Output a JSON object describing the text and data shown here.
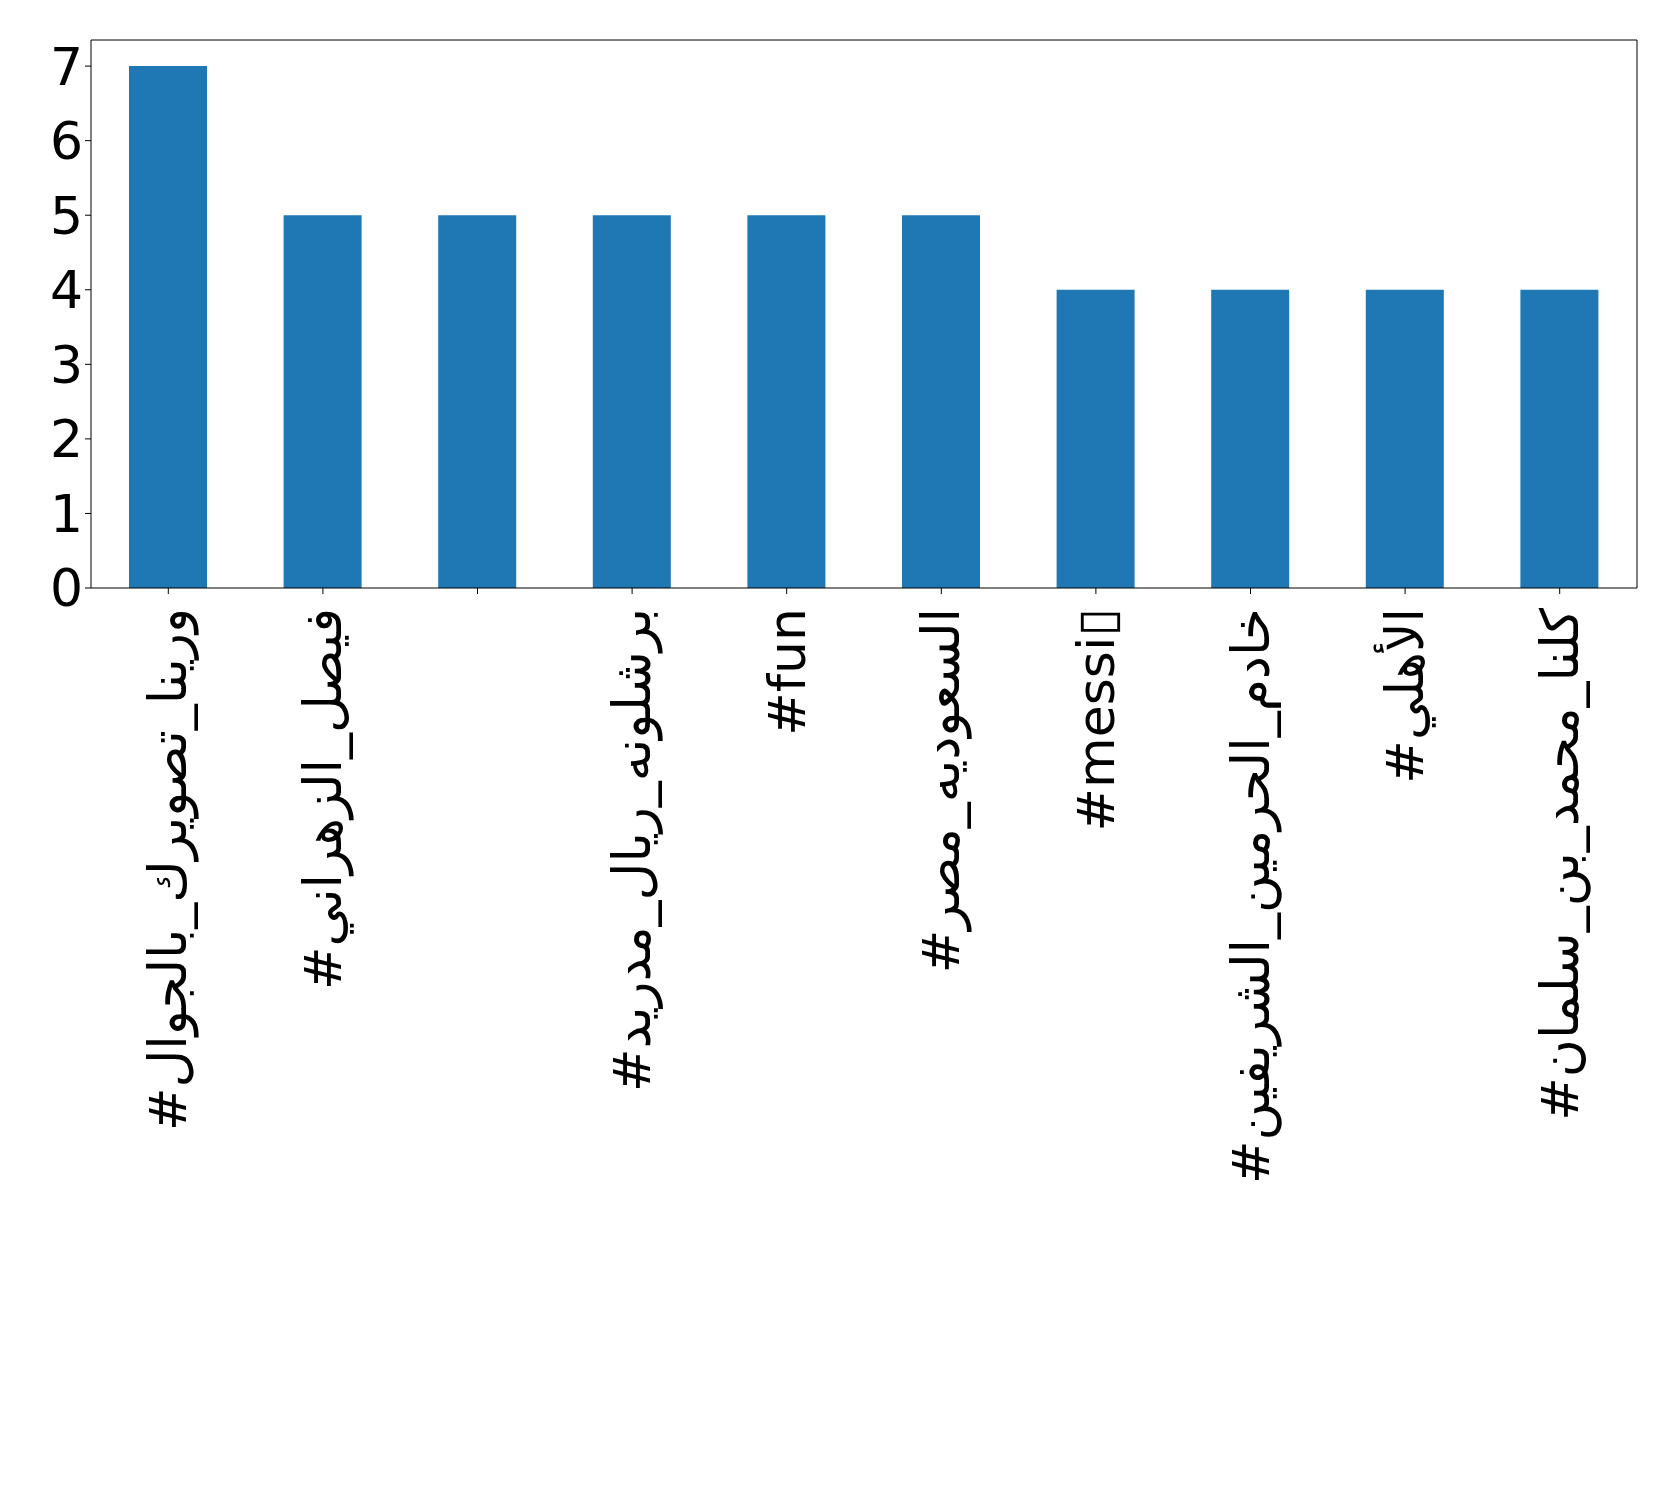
{
  "chart_data": {
    "type": "bar",
    "categories": [
      "#ورينا_تصويرك_بالجوال",
      "#فيصل_الزهراني",
      null,
      "#برشلونه_ريال_مدريد",
      "#fun",
      "#السعوديه_مصر",
      "#messi▯",
      "#خادم_الحرمين_الشريفين",
      "#الأهلي",
      "#كلنا_محمد_بن_سلمان"
    ],
    "values": [
      7,
      5,
      5,
      5,
      5,
      5,
      4,
      4,
      4,
      4
    ],
    "color": "#1f77b4",
    "ylim": [
      0,
      7.35
    ],
    "yticks": [
      0,
      1,
      2,
      3,
      4,
      5,
      6,
      7
    ],
    "grid": false
  }
}
